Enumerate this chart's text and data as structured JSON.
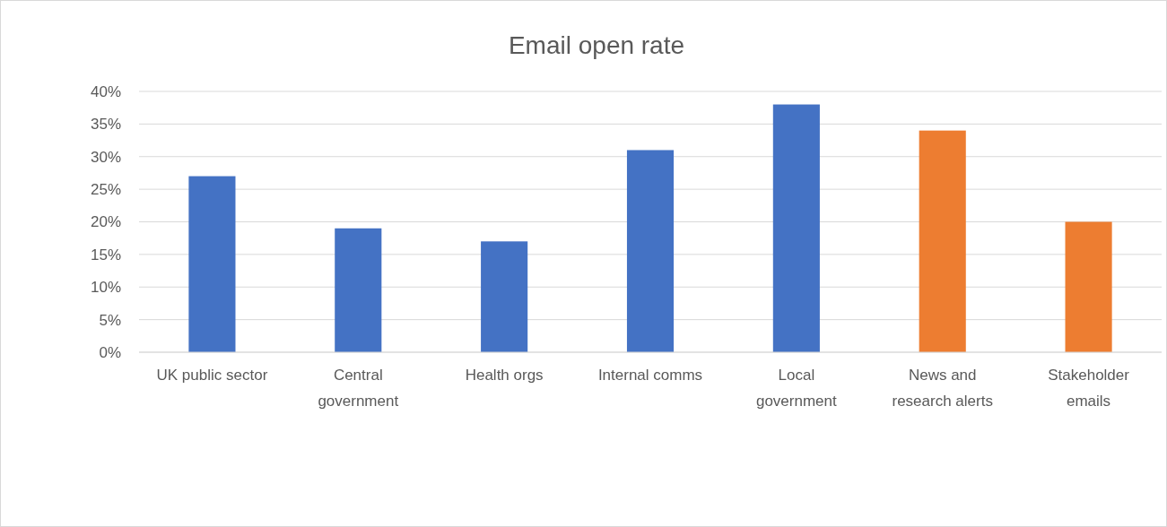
{
  "chart_data": {
    "type": "bar",
    "title": "Email open rate",
    "categories": [
      "UK public sector",
      "Central government",
      "Health orgs",
      "Internal comms",
      "Local government",
      "News and research alerts",
      "Stakeholder emails"
    ],
    "values": [
      27,
      19,
      17,
      31,
      38,
      34,
      20
    ],
    "colors": [
      "#4472c4",
      "#4472c4",
      "#4472c4",
      "#4472c4",
      "#4472c4",
      "#ed7d31",
      "#ed7d31"
    ],
    "ylim": [
      0,
      40
    ],
    "yticks": [
      {
        "value": 0,
        "label": "0%"
      },
      {
        "value": 5,
        "label": "5%"
      },
      {
        "value": 10,
        "label": "10%"
      },
      {
        "value": 15,
        "label": "15%"
      },
      {
        "value": 20,
        "label": "20%"
      },
      {
        "value": 25,
        "label": "25%"
      },
      {
        "value": 30,
        "label": "30%"
      },
      {
        "value": 35,
        "label": "35%"
      },
      {
        "value": 40,
        "label": "40%"
      }
    ],
    "grid": "y"
  }
}
